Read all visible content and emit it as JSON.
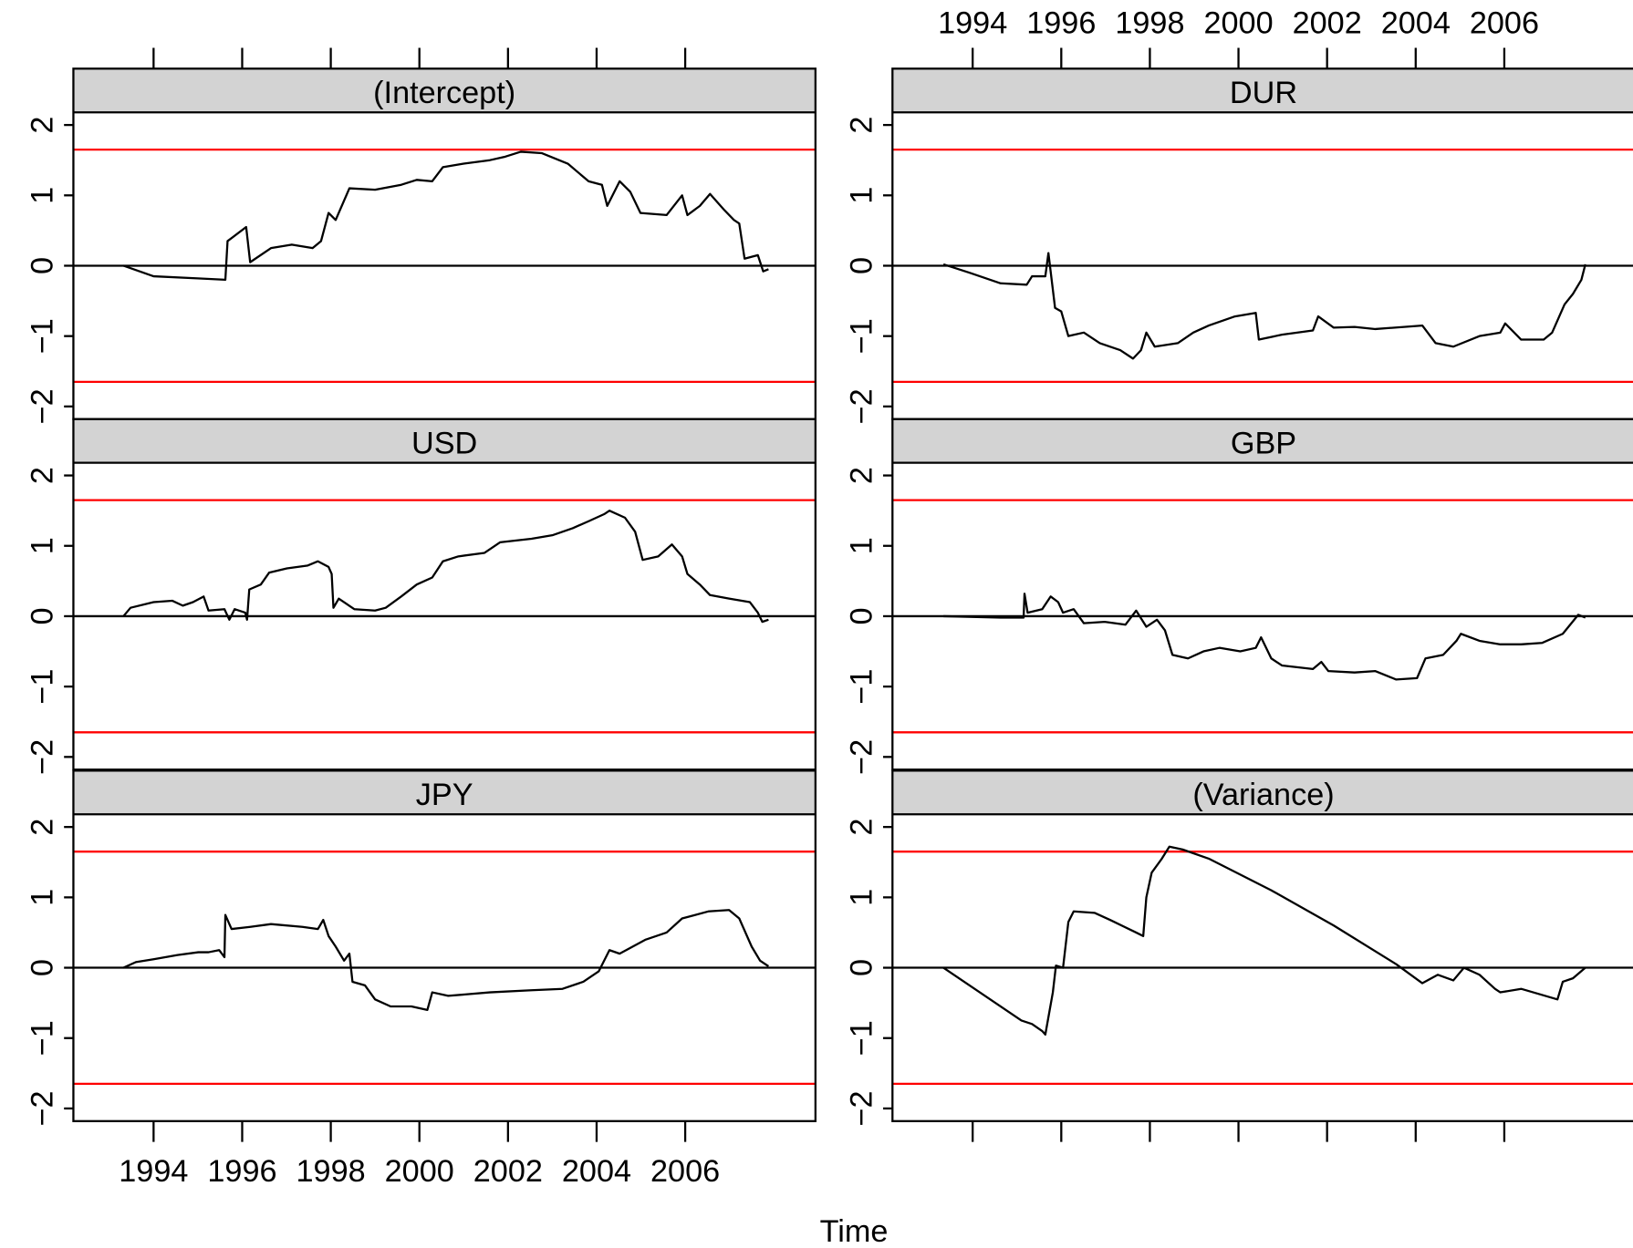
{
  "xlabel": "Time",
  "chart_data": [
    {
      "type": "line",
      "title": "(Intercept)",
      "color": "black",
      "x": [
        1993.32,
        1994,
        1995,
        1995.62,
        1995.67,
        1996.09,
        1996.18,
        1996.65,
        1997.12,
        1997.59,
        1997.78,
        1997.95,
        1998.11,
        1998.42,
        1999,
        1999.59,
        1999.94,
        2000.29,
        2000.53,
        2001,
        2001.59,
        2001.94,
        2002.29,
        2002.76,
        2003.35,
        2003.82,
        2004.12,
        2004.24,
        2004.52,
        2004.76,
        2004.99,
        2005.58,
        2005.93,
        2006.05,
        2006.33,
        2006.56,
        2006.87,
        2007.1,
        2007.22,
        2007.34,
        2007.64,
        2007.76,
        2007.88
      ],
      "values": [
        0,
        -0.15,
        -0.18,
        -0.2,
        0.35,
        0.55,
        0.05,
        0.25,
        0.3,
        0.25,
        0.35,
        0.75,
        0.65,
        1.1,
        1.08,
        1.15,
        1.22,
        1.2,
        1.4,
        1.45,
        1.5,
        1.55,
        1.62,
        1.6,
        1.45,
        1.2,
        1.15,
        0.85,
        1.2,
        1.05,
        0.75,
        0.72,
        1.0,
        0.72,
        0.85,
        1.02,
        0.8,
        0.65,
        0.6,
        0.1,
        0.15,
        -0.08,
        -0.05
      ],
      "xlim": [
        1992.19,
        2008.94
      ],
      "xticks": [
        1994,
        1996,
        1998,
        2000,
        2002,
        2004,
        2006
      ],
      "ylim": [
        -2.18,
        2.18
      ],
      "yticks": [
        {
          "value": -2,
          "label": "−2"
        },
        {
          "value": -1,
          "label": "−1"
        },
        0,
        1,
        2
      ],
      "hlines": [
        {
          "value": 0,
          "color": "black"
        },
        {
          "value": 1.65,
          "color": "red"
        },
        {
          "value": -1.65,
          "color": "red"
        }
      ]
    },
    {
      "type": "line",
      "title": "DUR",
      "color": "black",
      "x": [
        1993.34,
        1993.93,
        1994.63,
        1995.22,
        1995.34,
        1995.64,
        1995.71,
        1995.86,
        1996.0,
        1996.16,
        1996.51,
        1996.87,
        1997.33,
        1997.62,
        1997.8,
        1997.92,
        1998.11,
        1998.63,
        1998.98,
        1999.33,
        1999.92,
        2000.39,
        2000.46,
        2000.98,
        2001.68,
        2001.8,
        2002.15,
        2002.62,
        2003.09,
        2004.15,
        2004.45,
        2004.85,
        2005.44,
        2005.91,
        2006.02,
        2006.38,
        2006.89,
        2007.08,
        2007.36,
        2007.55,
        2007.74,
        2007.83
      ],
      "values": [
        0.02,
        -0.1,
        -0.25,
        -0.27,
        -0.15,
        -0.15,
        0.18,
        -0.6,
        -0.65,
        -1.0,
        -0.95,
        -1.1,
        -1.2,
        -1.32,
        -1.2,
        -0.95,
        -1.15,
        -1.1,
        -0.95,
        -0.85,
        -0.72,
        -0.67,
        -1.05,
        -0.98,
        -0.92,
        -0.72,
        -0.88,
        -0.87,
        -0.9,
        -0.85,
        -1.1,
        -1.15,
        -1.0,
        -0.95,
        -0.82,
        -1.05,
        -1.05,
        -0.95,
        -0.55,
        -0.4,
        -0.2,
        0.02
      ],
      "xlim": [
        1992.19,
        2008.94
      ],
      "xticks": [
        1994,
        1996,
        1998,
        2000,
        2002,
        2004,
        2006
      ],
      "ylim": [
        -2.18,
        2.18
      ],
      "yticks": [
        {
          "value": -2,
          "label": "−2"
        },
        {
          "value": -1,
          "label": "−1"
        },
        0,
        1,
        2
      ],
      "hlines": [
        {
          "value": 0,
          "color": "black"
        },
        {
          "value": 1.65,
          "color": "red"
        },
        {
          "value": -1.65,
          "color": "red"
        }
      ]
    },
    {
      "type": "line",
      "title": "USD",
      "color": "black",
      "x": [
        1993.32,
        1993.48,
        1994,
        1994.42,
        1994.66,
        1994.89,
        1995.13,
        1995.24,
        1995.6,
        1995.71,
        1995.83,
        1996.07,
        1996.11,
        1996.16,
        1996.42,
        1996.61,
        1997.01,
        1997.48,
        1997.71,
        1997.95,
        1998.02,
        1998.06,
        1998.18,
        1998.53,
        1999,
        1999.24,
        1999.59,
        1999.94,
        2000.29,
        2000.53,
        2000.88,
        2001.47,
        2001.82,
        2002.53,
        2003,
        2003.46,
        2003.82,
        2004.17,
        2004.29,
        2004.64,
        2004.87,
        2005.04,
        2005.39,
        2005.7,
        2005.93,
        2006.05,
        2006.33,
        2006.56,
        2006.99,
        2007.46,
        2007.64,
        2007.74,
        2007.88
      ],
      "values": [
        0,
        0.12,
        0.2,
        0.22,
        0.15,
        0.2,
        0.28,
        0.08,
        0.1,
        -0.05,
        0.1,
        0.05,
        -0.05,
        0.38,
        0.45,
        0.62,
        0.68,
        0.72,
        0.78,
        0.7,
        0.6,
        0.12,
        0.25,
        0.1,
        0.08,
        0.12,
        0.28,
        0.45,
        0.55,
        0.78,
        0.85,
        0.9,
        1.05,
        1.1,
        1.15,
        1.25,
        1.35,
        1.45,
        1.5,
        1.4,
        1.2,
        0.8,
        0.85,
        1.02,
        0.85,
        0.6,
        0.45,
        0.3,
        0.25,
        0.2,
        0.05,
        -0.08,
        -0.05
      ],
      "xlim": [
        1992.19,
        2008.94
      ],
      "ylim": [
        -2.18,
        2.18
      ],
      "yticks": [
        {
          "value": -2,
          "label": "−2"
        },
        {
          "value": -1,
          "label": "−1"
        },
        0,
        1,
        2
      ],
      "hlines": [
        {
          "value": 0,
          "color": "black"
        },
        {
          "value": 1.65,
          "color": "red"
        },
        {
          "value": -1.65,
          "color": "red"
        }
      ]
    },
    {
      "type": "line",
      "title": "GBP",
      "color": "black",
      "x": [
        1993.34,
        1994.63,
        1995.15,
        1995.17,
        1995.24,
        1995.57,
        1995.76,
        1995.93,
        1996.04,
        1996.28,
        1996.51,
        1996.98,
        1997.45,
        1997.69,
        1997.92,
        1998.16,
        1998.34,
        1998.51,
        1998.86,
        1999.21,
        1999.57,
        2000.04,
        2000.39,
        2000.51,
        2000.74,
        2000.98,
        2001.68,
        2001.87,
        2002.03,
        2002.62,
        2003.09,
        2003.56,
        2004.03,
        2004.22,
        2004.62,
        2004.92,
        2005.02,
        2005.44,
        2005.91,
        2006.38,
        2006.85,
        2007.32,
        2007.67,
        2007.83
      ],
      "values": [
        0,
        -0.02,
        -0.02,
        0.32,
        0.05,
        0.1,
        0.28,
        0.2,
        0.05,
        0.1,
        -0.1,
        -0.08,
        -0.12,
        0.08,
        -0.15,
        -0.05,
        -0.2,
        -0.55,
        -0.6,
        -0.5,
        -0.45,
        -0.5,
        -0.45,
        -0.3,
        -0.6,
        -0.7,
        -0.75,
        -0.65,
        -0.78,
        -0.8,
        -0.78,
        -0.9,
        -0.88,
        -0.6,
        -0.55,
        -0.35,
        -0.25,
        -0.35,
        -0.4,
        -0.4,
        -0.38,
        -0.25,
        0.02,
        -0.02
      ],
      "xlim": [
        1992.19,
        2008.94
      ],
      "ylim": [
        -2.18,
        2.18
      ],
      "yticks": [
        {
          "value": -2,
          "label": "−2"
        },
        {
          "value": -1,
          "label": "−1"
        },
        0,
        1,
        2
      ],
      "hlines": [
        {
          "value": 0,
          "color": "black"
        },
        {
          "value": 1.65,
          "color": "red"
        },
        {
          "value": -1.65,
          "color": "red"
        }
      ]
    },
    {
      "type": "line",
      "title": "JPY",
      "color": "black",
      "x": [
        1993.32,
        1993.6,
        1994,
        1994.54,
        1995.01,
        1995.24,
        1995.48,
        1995.6,
        1995.62,
        1995.76,
        1996.18,
        1996.65,
        1997.36,
        1997.71,
        1997.83,
        1997.95,
        1998.11,
        1998.3,
        1998.42,
        1998.49,
        1998.77,
        1999,
        1999.35,
        1999.82,
        2000.18,
        2000.29,
        2000.65,
        2001.59,
        2002.53,
        2003.23,
        2003.7,
        2004.05,
        2004.29,
        2004.52,
        2005.11,
        2005.58,
        2005.93,
        2006.52,
        2006.99,
        2007.22,
        2007.5,
        2007.69,
        2007.88
      ],
      "values": [
        0,
        0.08,
        0.12,
        0.18,
        0.22,
        0.22,
        0.25,
        0.15,
        0.75,
        0.55,
        0.58,
        0.62,
        0.58,
        0.55,
        0.68,
        0.45,
        0.3,
        0.1,
        0.2,
        -0.2,
        -0.25,
        -0.45,
        -0.55,
        -0.55,
        -0.6,
        -0.35,
        -0.4,
        -0.35,
        -0.32,
        -0.3,
        -0.2,
        -0.05,
        0.25,
        0.2,
        0.4,
        0.5,
        0.7,
        0.8,
        0.82,
        0.7,
        0.3,
        0.1,
        0.02
      ],
      "xlim": [
        1992.19,
        2008.94
      ],
      "xticks": [
        1994,
        1996,
        1998,
        2000,
        2002,
        2004,
        2006
      ],
      "ylim": [
        -2.18,
        2.18
      ],
      "yticks": [
        {
          "value": -2,
          "label": "−2"
        },
        {
          "value": -1,
          "label": "−1"
        },
        0,
        1,
        2
      ],
      "hlines": [
        {
          "value": 0,
          "color": "black"
        },
        {
          "value": 1.65,
          "color": "red"
        },
        {
          "value": -1.65,
          "color": "red"
        }
      ]
    },
    {
      "type": "line",
      "title": "(Variance)",
      "color": "black",
      "x": [
        1993.34,
        1995.1,
        1995.34,
        1995.57,
        1995.64,
        1995.81,
        1995.88,
        1996.04,
        1996.16,
        1996.28,
        1996.75,
        1997.1,
        1997.69,
        1997.85,
        1997.92,
        1998.04,
        1998.27,
        1998.44,
        1998.74,
        1999.33,
        2000.74,
        2002.15,
        2003.56,
        2004.15,
        2004.5,
        2004.85,
        2005.09,
        2005.44,
        2005.79,
        2005.91,
        2006.38,
        2007.2,
        2007.32,
        2007.55,
        2007.83
      ],
      "values": [
        0,
        -0.75,
        -0.8,
        -0.9,
        -0.95,
        -0.35,
        0.03,
        0,
        0.65,
        0.8,
        0.78,
        0.68,
        0.5,
        0.45,
        1.0,
        1.35,
        1.55,
        1.72,
        1.68,
        1.55,
        1.1,
        0.6,
        0.05,
        -0.22,
        -0.1,
        -0.18,
        0,
        -0.1,
        -0.3,
        -0.35,
        -0.3,
        -0.45,
        -0.2,
        -0.15,
        0
      ],
      "xlim": [
        1992.19,
        2008.94
      ],
      "xticks": [
        1994,
        1996,
        1998,
        2000,
        2002,
        2004,
        2006
      ],
      "ylim": [
        -2.18,
        2.18
      ],
      "yticks": [
        {
          "value": -2,
          "label": "−2"
        },
        {
          "value": -1,
          "label": "−1"
        },
        0,
        1,
        2
      ],
      "hlines": [
        {
          "value": 0,
          "color": "black"
        },
        {
          "value": 1.65,
          "color": "red"
        },
        {
          "value": -1.65,
          "color": "red"
        }
      ]
    }
  ]
}
